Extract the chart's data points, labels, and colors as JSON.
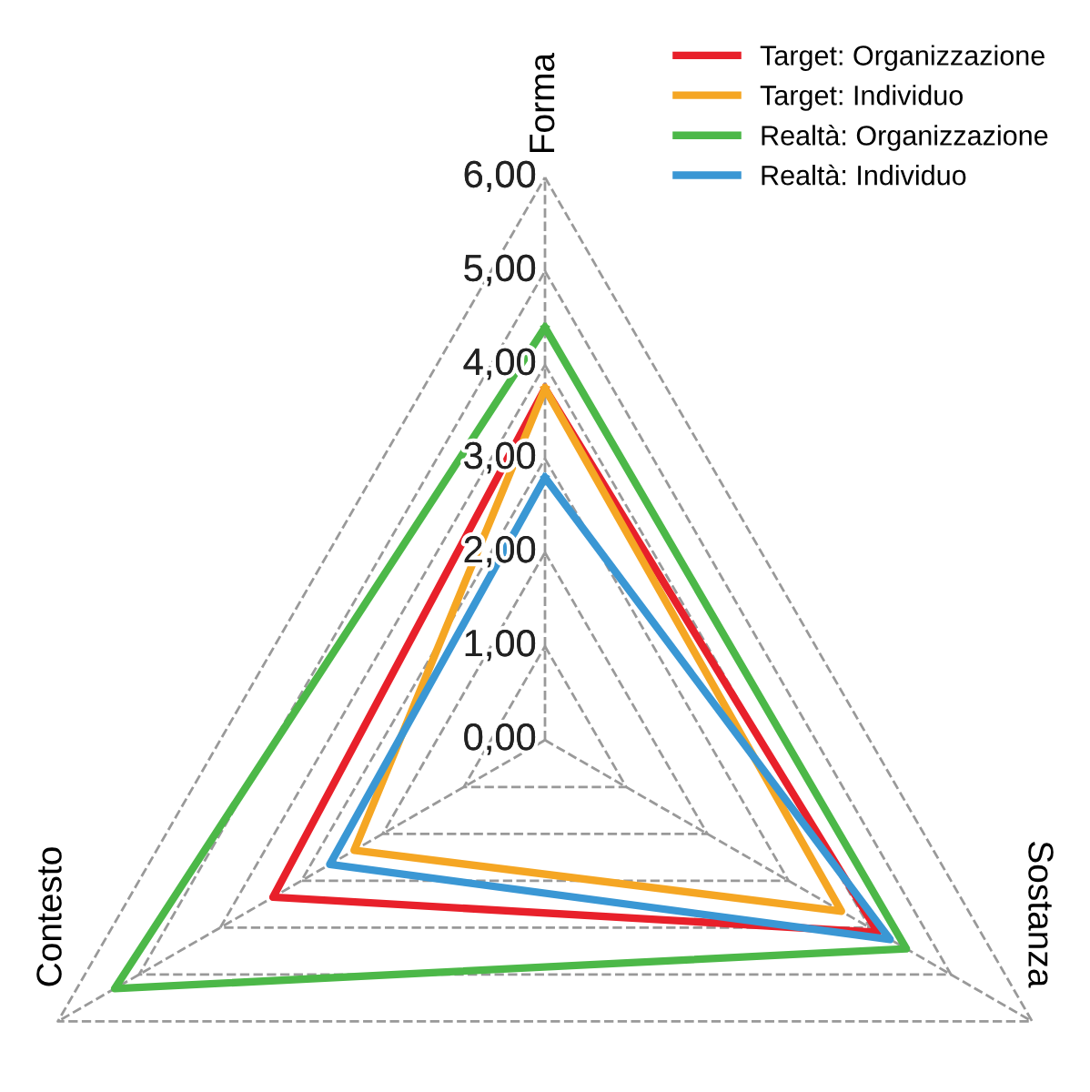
{
  "chart_data": {
    "type": "radar",
    "categories": [
      "Forma",
      "Sostanza",
      "Contesto"
    ],
    "series": [
      {
        "name": "Target: Organizzazione",
        "color": "#e8202a",
        "values": [
          3.75,
          4.1,
          3.35
        ]
      },
      {
        "name": "Target: Individuo",
        "color": "#f5a623",
        "values": [
          3.75,
          3.65,
          2.35
        ]
      },
      {
        "name": "Realtà: Organizzazione",
        "color": "#4cb848",
        "values": [
          4.4,
          4.45,
          5.3
        ]
      },
      {
        "name": "Realtà: Individuo",
        "color": "#3a97d4",
        "values": [
          2.8,
          4.25,
          2.65
        ]
      }
    ],
    "ylim": [
      0,
      6
    ],
    "yticks": [
      {
        "value": 0,
        "label": "0,00"
      },
      {
        "value": 1,
        "label": "1,00"
      },
      {
        "value": 2,
        "label": "2,00"
      },
      {
        "value": 3,
        "label": "3,00"
      },
      {
        "value": 4,
        "label": "4,00"
      },
      {
        "value": 5,
        "label": "5,00"
      },
      {
        "value": 6,
        "label": "6,00"
      }
    ],
    "grid": true,
    "legend": "top right",
    "marker": "none",
    "line_style": "solid"
  }
}
